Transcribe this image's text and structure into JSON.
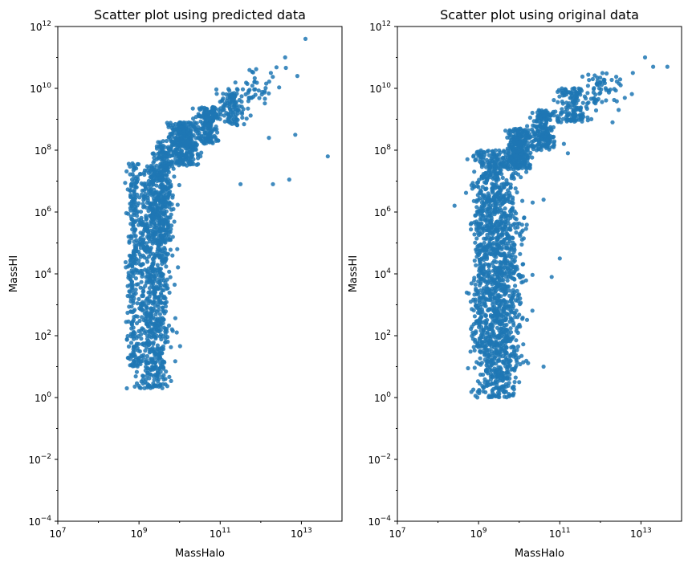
{
  "chart_data": [
    {
      "type": "scatter",
      "title": "Scatter plot using predicted data",
      "xlabel": "MassHalo",
      "ylabel": "MassHI",
      "xscale": "log",
      "yscale": "log",
      "xlim": [
        10000000.0,
        100000000000000.0
      ],
      "ylim": [
        0.0001,
        1000000000000.0
      ],
      "xticks": [
        {
          "base": "10",
          "exp": "7"
        },
        {
          "base": "10",
          "exp": "9"
        },
        {
          "base": "10",
          "exp": "11"
        },
        {
          "base": "10",
          "exp": "13"
        }
      ],
      "yticks": [
        {
          "base": "10",
          "exp": "−4"
        },
        {
          "base": "10",
          "exp": "−2"
        },
        {
          "base": "10",
          "exp": "0"
        },
        {
          "base": "10",
          "exp": "2"
        },
        {
          "base": "10",
          "exp": "4"
        },
        {
          "base": "10",
          "exp": "6"
        },
        {
          "base": "10",
          "exp": "8"
        },
        {
          "base": "10",
          "exp": "10"
        },
        {
          "base": "10",
          "exp": "12"
        }
      ],
      "color": "#1f77b4",
      "grid": false,
      "point_groups": [
        {
          "lx_mean": 9.35,
          "lx_sd": 0.22,
          "ly_min": 0.3,
          "ly_max": 7.5,
          "count": 900
        },
        {
          "lx_mean": 8.85,
          "lx_sd": 0.07,
          "ly_min": 1.0,
          "ly_max": 7.6,
          "count": 220
        },
        {
          "lx_mean": 9.6,
          "lx_sd": 0.12,
          "ly_min": 5.0,
          "ly_max": 8.3,
          "count": 260
        },
        {
          "lx_mean": 10.1,
          "lx_sd": 0.18,
          "ly_min": 7.5,
          "ly_max": 8.9,
          "count": 320
        },
        {
          "lx_mean": 10.7,
          "lx_sd": 0.15,
          "ly_min": 8.2,
          "ly_max": 9.4,
          "count": 200
        },
        {
          "lx_mean": 11.3,
          "lx_sd": 0.17,
          "ly_min": 8.8,
          "ly_max": 10.0,
          "count": 110
        },
        {
          "lx_mean": 11.9,
          "lx_sd": 0.25,
          "ly_min": 9.5,
          "ly_max": 10.8,
          "count": 40
        }
      ],
      "points": [
        [
          13.1,
          11.6
        ],
        [
          13.65,
          7.8
        ],
        [
          12.3,
          6.9
        ],
        [
          12.7,
          7.05
        ],
        [
          12.9,
          10.4
        ],
        [
          12.85,
          8.5
        ],
        [
          12.2,
          8.4
        ],
        [
          11.5,
          6.9
        ],
        [
          12.6,
          11.0
        ],
        [
          8.7,
          0.3
        ],
        [
          9.2,
          0.45
        ],
        [
          9.15,
          0.5
        ]
      ]
    },
    {
      "type": "scatter",
      "title": "Scatter plot using original data",
      "xlabel": "MassHalo",
      "ylabel": "MassHI",
      "xscale": "log",
      "yscale": "log",
      "xlim": [
        10000000.0,
        100000000000000.0
      ],
      "ylim": [
        0.0001,
        1000000000000.0
      ],
      "xticks": [
        {
          "base": "10",
          "exp": "7"
        },
        {
          "base": "10",
          "exp": "9"
        },
        {
          "base": "10",
          "exp": "11"
        },
        {
          "base": "10",
          "exp": "13"
        }
      ],
      "yticks": [
        {
          "base": "10",
          "exp": "−4"
        },
        {
          "base": "10",
          "exp": "−2"
        },
        {
          "base": "10",
          "exp": "0"
        },
        {
          "base": "10",
          "exp": "2"
        },
        {
          "base": "10",
          "exp": "4"
        },
        {
          "base": "10",
          "exp": "6"
        },
        {
          "base": "10",
          "exp": "8"
        },
        {
          "base": "10",
          "exp": "10"
        },
        {
          "base": "10",
          "exp": "12"
        }
      ],
      "color": "#1f77b4",
      "grid": false,
      "point_groups": [
        {
          "lx_mean": 9.45,
          "lx_sd": 0.25,
          "ly_min": 0.0,
          "ly_max": 8.0,
          "count": 1100
        },
        {
          "lx_mean": 9.05,
          "lx_sd": 0.1,
          "ly_min": 1.5,
          "ly_max": 8.0,
          "count": 250
        },
        {
          "lx_mean": 9.8,
          "lx_sd": 0.18,
          "ly_min": 0.5,
          "ly_max": 6.0,
          "count": 200
        },
        {
          "lx_mean": 10.0,
          "lx_sd": 0.15,
          "ly_min": 7.4,
          "ly_max": 8.7,
          "count": 300
        },
        {
          "lx_mean": 10.6,
          "lx_sd": 0.15,
          "ly_min": 8.0,
          "ly_max": 9.3,
          "count": 200
        },
        {
          "lx_mean": 11.3,
          "lx_sd": 0.2,
          "ly_min": 8.9,
          "ly_max": 10.0,
          "count": 150
        },
        {
          "lx_mean": 12.0,
          "lx_sd": 0.25,
          "ly_min": 9.5,
          "ly_max": 10.5,
          "count": 60
        }
      ],
      "points": [
        [
          13.1,
          11.0
        ],
        [
          13.3,
          10.7
        ],
        [
          13.65,
          10.7
        ],
        [
          12.8,
          10.5
        ],
        [
          12.5,
          10.1
        ],
        [
          12.45,
          9.3
        ],
        [
          12.3,
          8.9
        ],
        [
          11.2,
          7.9
        ],
        [
          10.6,
          6.4
        ],
        [
          11.0,
          4.5
        ],
        [
          10.8,
          3.9
        ],
        [
          10.6,
          1.0
        ],
        [
          9.5,
          0.3
        ],
        [
          10.0,
          0.5
        ]
      ]
    }
  ]
}
